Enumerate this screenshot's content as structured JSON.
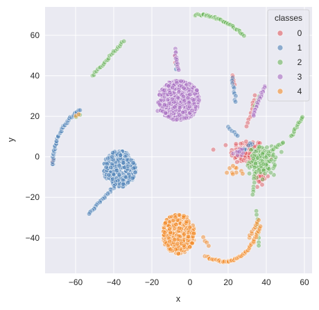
{
  "chart_data": {
    "type": "scatter",
    "title": "",
    "xlabel": "x",
    "ylabel": "y",
    "xlim": [
      -76,
      64
    ],
    "ylim": [
      -57.5,
      74
    ],
    "xticks": [
      -60,
      -40,
      -20,
      0,
      20,
      40,
      60
    ],
    "yticks": [
      -40,
      -20,
      0,
      20,
      40,
      60
    ],
    "xtick_labels": [
      "−60",
      "−40",
      "−20",
      "0",
      "20",
      "40",
      "60"
    ],
    "ytick_labels": [
      "−40",
      "−20",
      "0",
      "20",
      "40",
      "60"
    ],
    "grid": true,
    "legend": {
      "title": "classes",
      "placement": "top-right",
      "entries": [
        "0",
        "1",
        "2",
        "3",
        "4"
      ]
    },
    "series": [
      {
        "name": "0",
        "color": "#e05a5f",
        "clusters": [
          {
            "shape": "blob",
            "center": [
              30,
              2
            ],
            "spread": [
              8,
              6
            ],
            "count": 110
          },
          {
            "shape": "blob",
            "center": [
              37,
              -10
            ],
            "spread": [
              3,
              5
            ],
            "count": 25
          },
          {
            "shape": "line",
            "from": [
              22,
              40
            ],
            "to": [
              23,
              36
            ],
            "count": 6
          },
          {
            "shape": "line",
            "from": [
              -72,
              -1
            ],
            "to": [
              -72,
              -3
            ],
            "count": 3
          },
          {
            "shape": "line",
            "from": [
              -8,
              50
            ],
            "to": [
              -7,
              45
            ],
            "count": 4
          },
          {
            "shape": "line",
            "from": [
              34,
              30
            ],
            "to": [
              30,
              15
            ],
            "count": 10
          }
        ]
      },
      {
        "name": "1",
        "color": "#4c80b5",
        "clusters": [
          {
            "shape": "disc",
            "center": [
              -37,
              -6
            ],
            "radius": [
              8.5,
              9
            ],
            "count": 360
          },
          {
            "shape": "line",
            "from": [
              -39,
              -14
            ],
            "to": [
              -53,
              -28
            ],
            "count": 24
          },
          {
            "shape": "arc",
            "from": [
              -72,
              -4
            ],
            "via": [
              -68,
              12
            ],
            "to": [
              -58,
              23
            ],
            "count": 48
          },
          {
            "shape": "line",
            "from": [
              22,
              39
            ],
            "to": [
              24,
              27
            ],
            "count": 10
          },
          {
            "shape": "line",
            "from": [
              20,
              15
            ],
            "to": [
              25,
              10
            ],
            "count": 6
          },
          {
            "shape": "line",
            "from": [
              -7,
              48
            ],
            "to": [
              -7,
              43
            ],
            "count": 3
          },
          {
            "shape": "blob",
            "center": [
              30,
              4
            ],
            "spread": [
              4,
              3
            ],
            "count": 10
          }
        ]
      },
      {
        "name": "2",
        "color": "#6ab35a",
        "clusters": [
          {
            "shape": "arc",
            "from": [
              3,
              70
            ],
            "via": [
              15,
              68
            ],
            "to": [
              28,
              60
            ],
            "count": 48
          },
          {
            "shape": "line",
            "from": [
              -51,
              40
            ],
            "to": [
              -35,
              57
            ],
            "count": 24
          },
          {
            "shape": "line",
            "from": [
              53,
              10
            ],
            "to": [
              59,
              20
            ],
            "count": 16
          },
          {
            "shape": "blob",
            "center": [
              38,
              -2
            ],
            "spread": [
              6,
              6
            ],
            "count": 150
          },
          {
            "shape": "line",
            "from": [
              41,
              2
            ],
            "to": [
              49,
              7
            ],
            "count": 14
          },
          {
            "shape": "line",
            "from": [
              35,
              -27
            ],
            "to": [
              36,
              -44
            ],
            "count": 10
          },
          {
            "shape": "line",
            "from": [
              34,
              -8
            ],
            "to": [
              33,
              -19
            ],
            "count": 8
          },
          {
            "shape": "line",
            "from": [
              -60,
              20
            ],
            "to": [
              -58,
              21
            ],
            "count": 2
          },
          {
            "shape": "line",
            "from": [
              34,
              25
            ],
            "to": [
              36,
              30
            ],
            "count": 5
          }
        ]
      },
      {
        "name": "3",
        "color": "#a66bbf",
        "clusters": [
          {
            "shape": "disc",
            "center": [
              -6,
              28
            ],
            "radius": [
              11,
              10
            ],
            "count": 460
          },
          {
            "shape": "line",
            "from": [
              -8,
              53
            ],
            "to": [
              -6,
              43
            ],
            "count": 12
          },
          {
            "shape": "line",
            "from": [
              39,
              35
            ],
            "to": [
              33,
              20
            ],
            "count": 22
          },
          {
            "shape": "line",
            "from": [
              -17,
              23
            ],
            "to": [
              -13,
              22
            ],
            "count": 4
          },
          {
            "shape": "blob",
            "center": [
              27,
              2
            ],
            "spread": [
              3,
              3
            ],
            "count": 10
          }
        ]
      },
      {
        "name": "4",
        "color": "#f28a28",
        "clusters": [
          {
            "shape": "disc",
            "center": [
              -6,
              -38
            ],
            "radius": [
              8.5,
              10
            ],
            "count": 420
          },
          {
            "shape": "arc",
            "from": [
              8,
              -49
            ],
            "via": [
              25,
              -50
            ],
            "to": [
              37,
              -34
            ],
            "count": 60
          },
          {
            "shape": "line",
            "from": [
              31,
              -40
            ],
            "to": [
              36,
              -31
            ],
            "count": 10
          },
          {
            "shape": "line",
            "from": [
              7,
              -40
            ],
            "to": [
              10,
              -44
            ],
            "count": 4
          },
          {
            "shape": "line",
            "from": [
              -60,
              20
            ],
            "to": [
              -58,
              21
            ],
            "count": 2
          },
          {
            "shape": "blob",
            "center": [
              24,
              -6
            ],
            "spread": [
              4,
              3
            ],
            "count": 10
          }
        ]
      }
    ]
  }
}
